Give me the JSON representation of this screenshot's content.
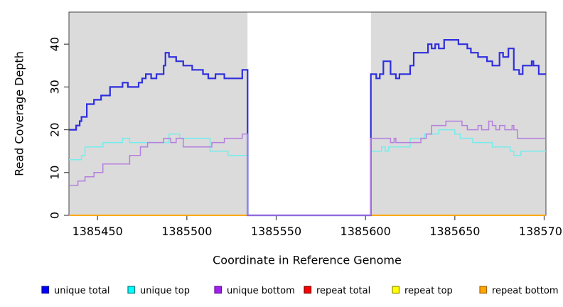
{
  "chart_data": {
    "type": "line",
    "step": true,
    "title": "",
    "xlabel": "Coordinate in Reference Genome",
    "ylabel": "Read Coverage Depth",
    "xlim": [
      1385434,
      1385701
    ],
    "ylim": [
      0,
      47.5
    ],
    "x_ticks": [
      1385450,
      1385500,
      1385550,
      1385600,
      1385650,
      1385700
    ],
    "y_ticks": [
      0,
      10,
      20,
      30,
      40
    ],
    "grid": false,
    "panel_bg": "#DBDBDB",
    "frame_color": "#454545",
    "masked_region": {
      "x_start": 1385534,
      "x_end": 1385603,
      "color": "#FFFFFF"
    },
    "legend_position": "bottom",
    "draw_order": [
      "repeat total",
      "repeat top",
      "repeat bottom",
      "unique top",
      "unique total",
      "unique bottom"
    ],
    "series": [
      {
        "name": "unique total",
        "line_color": "#2E2EDE",
        "legend_fill": "#0000FF",
        "legend_border": "#000090",
        "line_width": 2.2,
        "segments": [
          [
            [
              1385434,
              20
            ],
            [
              1385438,
              21
            ],
            [
              1385440,
              22
            ],
            [
              1385441,
              23
            ],
            [
              1385444,
              26
            ],
            [
              1385448,
              27
            ],
            [
              1385452,
              28
            ],
            [
              1385457,
              30
            ],
            [
              1385464,
              31
            ],
            [
              1385467,
              30
            ],
            [
              1385473,
              31
            ],
            [
              1385475,
              32
            ],
            [
              1385477,
              33
            ],
            [
              1385480,
              32
            ],
            [
              1385483,
              33
            ],
            [
              1385487,
              35
            ],
            [
              1385488,
              38
            ],
            [
              1385490,
              37
            ],
            [
              1385494,
              36
            ],
            [
              1385498,
              35
            ],
            [
              1385503,
              34
            ],
            [
              1385509,
              33
            ],
            [
              1385512,
              32
            ],
            [
              1385516,
              33
            ],
            [
              1385521,
              32
            ],
            [
              1385531,
              34
            ],
            [
              1385534,
              0
            ],
            [
              1385603,
              33
            ],
            [
              1385606,
              32
            ],
            [
              1385608,
              33
            ],
            [
              1385610,
              36
            ],
            [
              1385614,
              33
            ],
            [
              1385617,
              32
            ],
            [
              1385619,
              33
            ],
            [
              1385625,
              35
            ],
            [
              1385627,
              38
            ],
            [
              1385635,
              40
            ],
            [
              1385637,
              39
            ],
            [
              1385639,
              40
            ],
            [
              1385641,
              39
            ],
            [
              1385644,
              41
            ],
            [
              1385652,
              40
            ],
            [
              1385657,
              39
            ],
            [
              1385659,
              38
            ],
            [
              1385663,
              37
            ],
            [
              1385668,
              36
            ],
            [
              1385671,
              35
            ],
            [
              1385675,
              38
            ],
            [
              1385677,
              37
            ],
            [
              1385680,
              39
            ],
            [
              1385683,
              34
            ],
            [
              1385686,
              33
            ],
            [
              1385688,
              35
            ],
            [
              1385693,
              36
            ],
            [
              1385694,
              35
            ],
            [
              1385697,
              33
            ],
            [
              1385701,
              33
            ]
          ]
        ]
      },
      {
        "name": "unique top",
        "line_color": "#76ECEC",
        "legend_fill": "#00FFFF",
        "legend_border": "#007A7A",
        "line_width": 1.5,
        "segments": [
          [
            [
              1385434,
              13
            ],
            [
              1385441,
              14
            ],
            [
              1385443,
              16
            ],
            [
              1385453,
              17
            ],
            [
              1385464,
              18
            ],
            [
              1385468,
              17
            ],
            [
              1385490,
              19
            ],
            [
              1385496,
              18
            ],
            [
              1385513,
              15
            ],
            [
              1385523,
              14
            ],
            [
              1385534,
              0
            ],
            [
              1385603,
              15
            ],
            [
              1385609,
              16
            ],
            [
              1385611,
              15
            ],
            [
              1385613,
              16
            ],
            [
              1385625,
              18
            ],
            [
              1385633,
              19
            ],
            [
              1385641,
              20
            ],
            [
              1385650,
              19
            ],
            [
              1385653,
              18
            ],
            [
              1385660,
              17
            ],
            [
              1385671,
              16
            ],
            [
              1385681,
              15
            ],
            [
              1385683,
              14
            ],
            [
              1385687,
              15
            ],
            [
              1385701,
              15
            ]
          ]
        ]
      },
      {
        "name": "unique bottom",
        "line_color": "#B47FDE",
        "legend_fill": "#A020F0",
        "legend_border": "#5E0D91",
        "line_width": 1.5,
        "segments": [
          [
            [
              1385434,
              7
            ],
            [
              1385439,
              8
            ],
            [
              1385443,
              9
            ],
            [
              1385448,
              10
            ],
            [
              1385453,
              12
            ],
            [
              1385468,
              14
            ],
            [
              1385474,
              16
            ],
            [
              1385478,
              17
            ],
            [
              1385487,
              18
            ],
            [
              1385491,
              17
            ],
            [
              1385494,
              18
            ],
            [
              1385498,
              16
            ],
            [
              1385514,
              17
            ],
            [
              1385521,
              18
            ],
            [
              1385531,
              19
            ],
            [
              1385534,
              0
            ],
            [
              1385603,
              18
            ],
            [
              1385614,
              17
            ],
            [
              1385616,
              18
            ],
            [
              1385617,
              17
            ],
            [
              1385631,
              18
            ],
            [
              1385634,
              19
            ],
            [
              1385637,
              21
            ],
            [
              1385645,
              22
            ],
            [
              1385654,
              21
            ],
            [
              1385657,
              20
            ],
            [
              1385663,
              21
            ],
            [
              1385665,
              20
            ],
            [
              1385669,
              22
            ],
            [
              1385671,
              21
            ],
            [
              1385673,
              20
            ],
            [
              1385675,
              21
            ],
            [
              1385678,
              20
            ],
            [
              1385682,
              21
            ],
            [
              1385683,
              20
            ],
            [
              1385685,
              18
            ],
            [
              1385701,
              18
            ]
          ]
        ]
      },
      {
        "name": "repeat total",
        "line_color": "#E00000",
        "legend_fill": "#FF0000",
        "legend_border": "#7A0000",
        "line_width": 1.2,
        "segments": [
          [
            [
              1385434,
              0
            ],
            [
              1385534,
              0
            ]
          ],
          [
            [
              1385603,
              0
            ],
            [
              1385701,
              0
            ]
          ]
        ]
      },
      {
        "name": "repeat top",
        "line_color": "#F2F200",
        "legend_fill": "#FFFF00",
        "legend_border": "#8F8F00",
        "line_width": 1.2,
        "segments": [
          [
            [
              1385434,
              0
            ],
            [
              1385534,
              0
            ]
          ],
          [
            [
              1385603,
              0
            ],
            [
              1385701,
              0
            ]
          ]
        ]
      },
      {
        "name": "repeat bottom",
        "line_color": "#FFA500",
        "legend_fill": "#FFA500",
        "legend_border": "#A66400",
        "line_width": 1.8,
        "segments": [
          [
            [
              1385434,
              0
            ],
            [
              1385534,
              0
            ]
          ],
          [
            [
              1385603,
              0
            ],
            [
              1385701,
              0
            ]
          ]
        ]
      }
    ]
  }
}
